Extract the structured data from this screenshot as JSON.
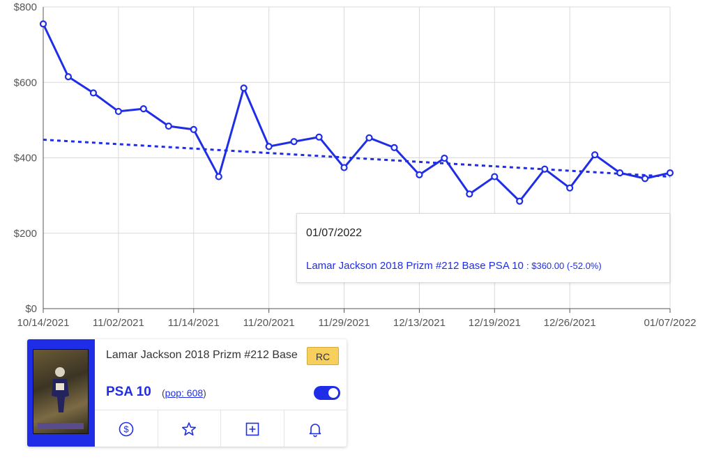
{
  "chart_data": {
    "type": "line",
    "title": "",
    "xlabel": "",
    "ylabel": "",
    "ylim": [
      0,
      800
    ],
    "yticks": [
      "$0",
      "$200",
      "$400",
      "$600",
      "$800"
    ],
    "ytick_values": [
      0,
      200,
      400,
      600,
      800
    ],
    "x_tick_labels": [
      {
        "label": "10/14/2021",
        "index": 0
      },
      {
        "label": "11/02/2021",
        "index": 3
      },
      {
        "label": "11/14/2021",
        "index": 6
      },
      {
        "label": "11/20/2021",
        "index": 9
      },
      {
        "label": "11/29/2021",
        "index": 12
      },
      {
        "label": "12/13/2021",
        "index": 15
      },
      {
        "label": "12/19/2021",
        "index": 18
      },
      {
        "label": "12/26/2021",
        "index": 21
      },
      {
        "label": "01/07/2022",
        "index": 25
      }
    ],
    "grid": true,
    "series": [
      {
        "values": [
          755,
          615,
          572,
          523,
          530,
          484,
          475,
          350,
          585,
          430,
          443,
          455,
          374,
          453,
          427,
          355,
          399,
          304,
          350,
          285,
          370,
          320,
          408,
          360,
          345,
          360
        ]
      }
    ],
    "trendline": {
      "start": 448,
      "end": 350
    },
    "colors": {
      "line": "#1f2ee6",
      "grid": "#d9d9d9",
      "axis": "#555555"
    }
  },
  "tooltip": {
    "date": "01/07/2022",
    "item": "Lamar Jackson 2018 Prizm #212 Base PSA 10",
    "value": ": $360.00 (-52.0%)"
  },
  "card": {
    "title": "Lamar Jackson 2018 Prizm #212 Base",
    "badge": "RC",
    "grade": "PSA 10",
    "pop_open": "(",
    "pop_link": "pop: 608",
    "pop_close": ")",
    "toggle_on": true,
    "actions": [
      {
        "name": "dollar-icon"
      },
      {
        "name": "star-icon"
      },
      {
        "name": "plus-square-icon"
      },
      {
        "name": "bell-icon"
      }
    ]
  }
}
